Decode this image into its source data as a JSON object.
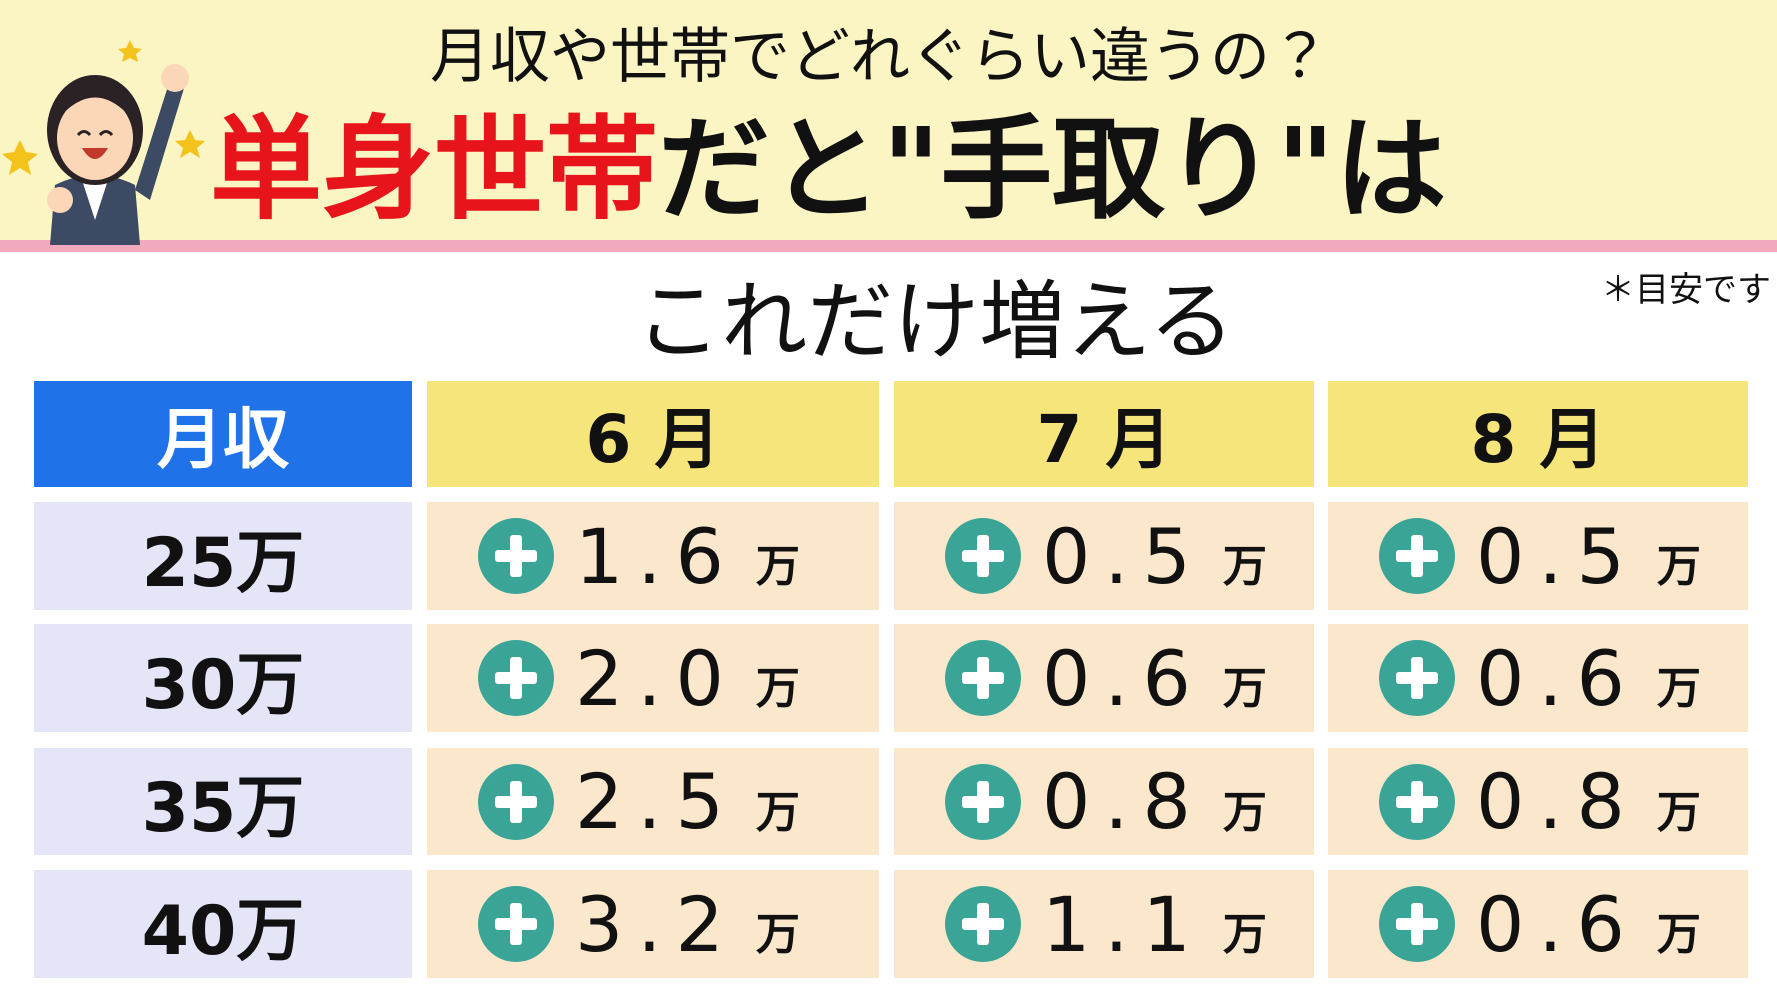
{
  "header": {
    "question": "月収や世帯でどれぐらい違うの？",
    "title_highlight": "単身世帯",
    "title_rest": "だと\"手取り\"は",
    "subtitle": "これだけ増える",
    "note": "＊目安です"
  },
  "table": {
    "unit": "万",
    "columns": [
      "月収",
      "6 月",
      "7 月",
      "8 月"
    ],
    "rows": [
      [
        "25万",
        "1.6",
        "0.5",
        "0.5"
      ],
      [
        "30万",
        "2.0",
        "0.6",
        "0.6"
      ],
      [
        "35万",
        "2.5",
        "0.8",
        "0.8"
      ],
      [
        "40万",
        "3.2",
        "1.1",
        "0.6"
      ]
    ]
  }
}
